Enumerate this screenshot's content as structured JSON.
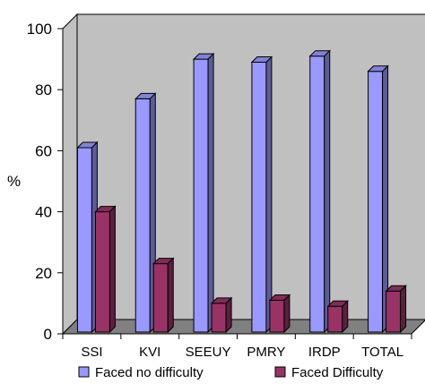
{
  "chart_data": {
    "type": "bar",
    "title": "",
    "xlabel": "",
    "ylabel": "%",
    "ylim": [
      0,
      100
    ],
    "yticks": [
      0,
      20,
      40,
      60,
      80,
      100
    ],
    "grid": false,
    "legend_position": "bottom",
    "categories": [
      "SSI",
      "KVI",
      "SEEUY",
      "PMRY",
      "IRDP",
      "TOTAL"
    ],
    "series": [
      {
        "name": "Faced no difficulty",
        "values": [
          61,
          77,
          90,
          89,
          91,
          86
        ],
        "color": "#9999ff"
      },
      {
        "name": "Faced Difficulty",
        "values": [
          40,
          23,
          10,
          11,
          9,
          14
        ],
        "color": "#993366"
      }
    ],
    "wall_color": "#c0c0c0",
    "floor_color": "#808080"
  }
}
